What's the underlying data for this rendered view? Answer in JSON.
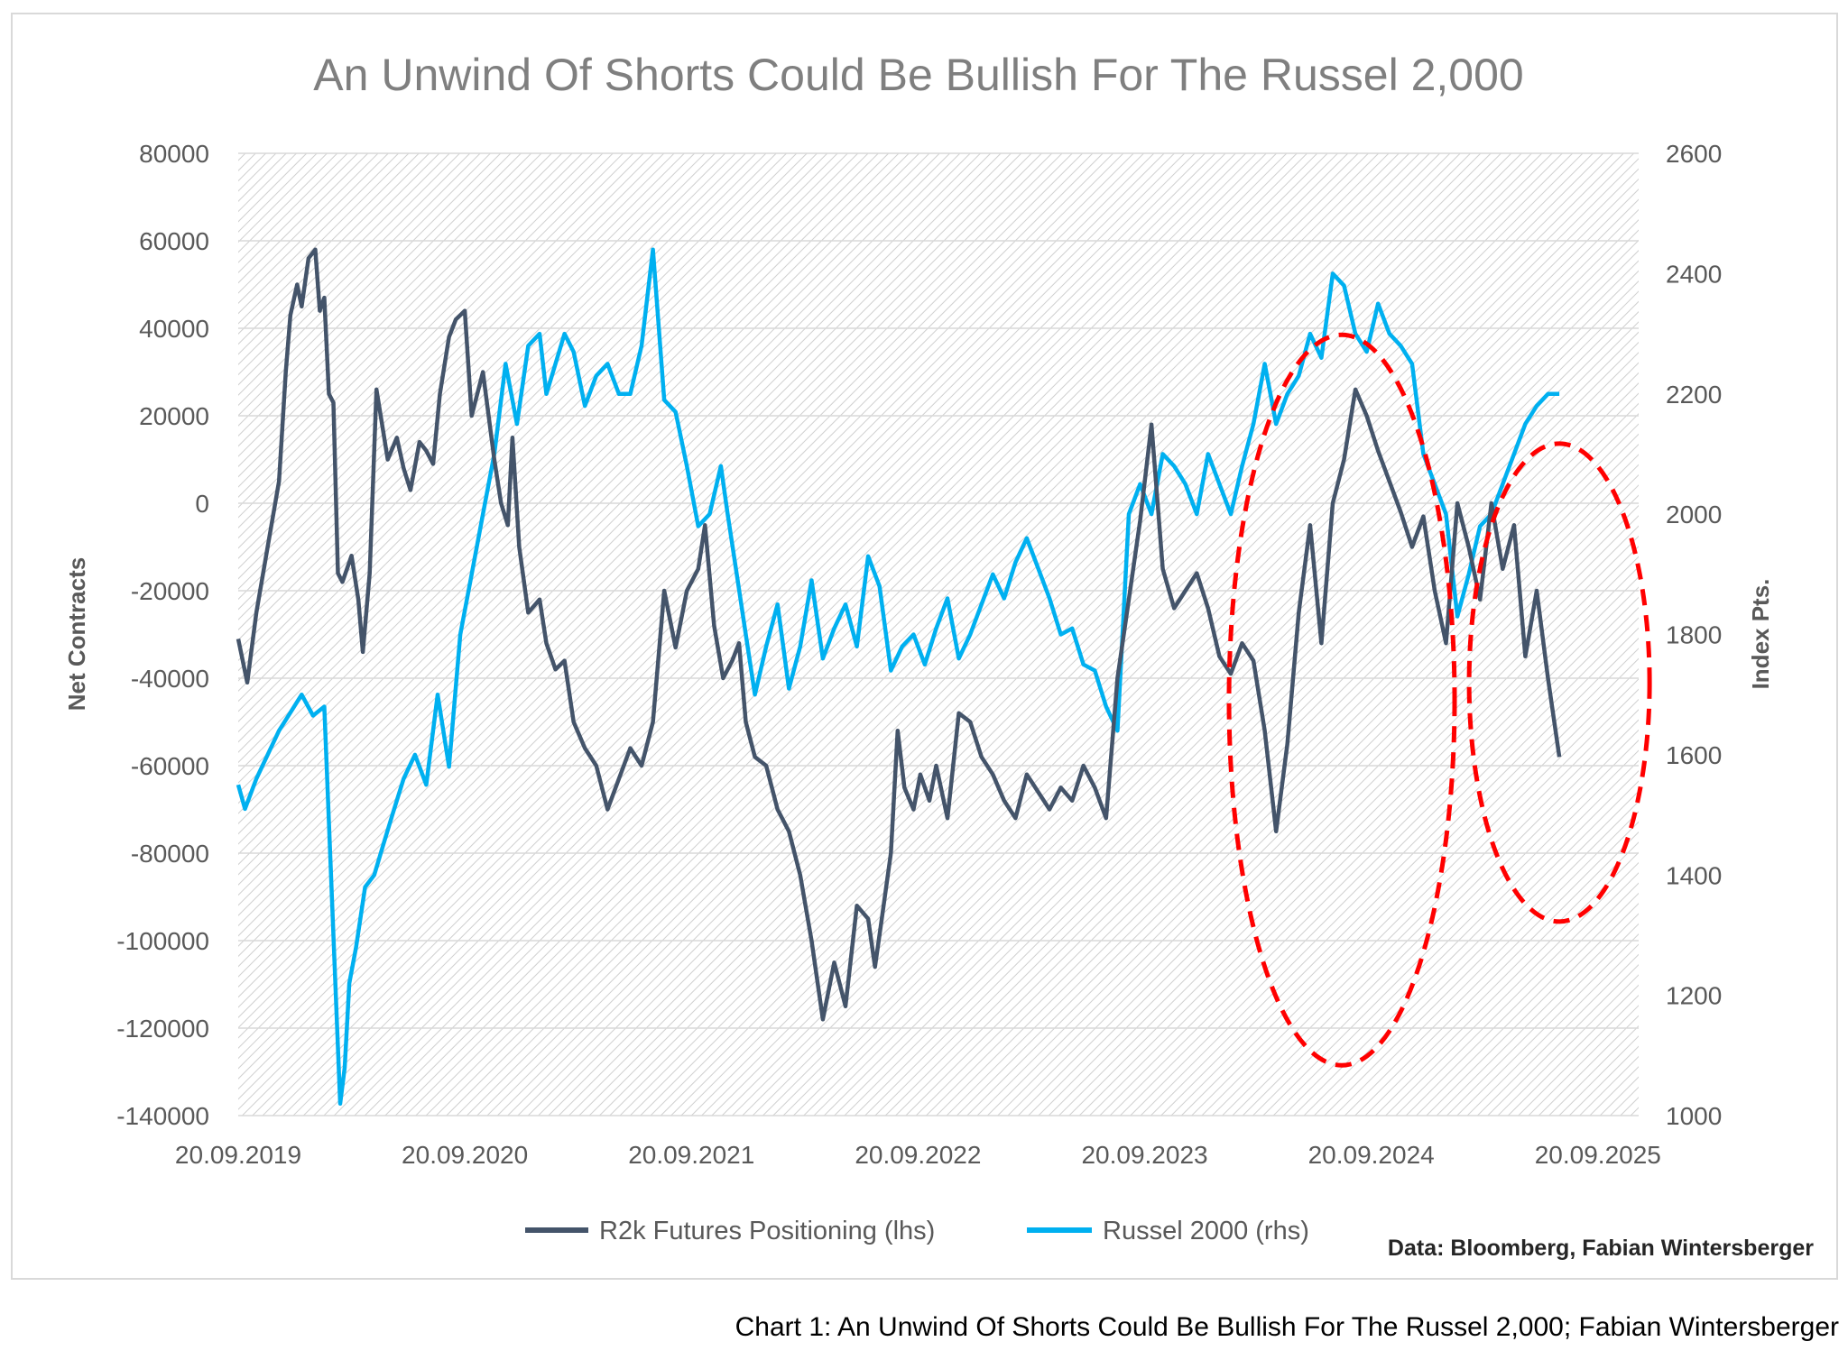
{
  "chart_data": {
    "type": "line",
    "title": "An Unwind Of Shorts Could Be Bullish For The Russel 2,000",
    "ylabel_left": "Net Contracts",
    "ylabel_right": "Index Pts.",
    "xlabel": "",
    "left_axis": {
      "ylim": [
        -140000,
        80000
      ],
      "ticks": [
        "80000",
        "60000",
        "40000",
        "20000",
        "0",
        "-20000",
        "-40000",
        "-60000",
        "-80000",
        "-100000",
        "-120000",
        "-140000"
      ]
    },
    "right_axis": {
      "ylim": [
        1000,
        2600
      ],
      "ticks": [
        "2600",
        "2400",
        "2200",
        "2000",
        "1800",
        "1600",
        "1400",
        "1200",
        "1000"
      ]
    },
    "x_range": [
      2019.72,
      2025.9
    ],
    "x_ticks": [
      "20.09.2019",
      "20.09.2020",
      "20.09.2021",
      "20.09.2022",
      "20.09.2023",
      "20.09.2024",
      "20.09.2025"
    ],
    "x_tick_positions": [
      2019.72,
      2020.72,
      2021.72,
      2022.72,
      2023.72,
      2024.72,
      2025.72
    ],
    "legend": {
      "placement": "bottom",
      "entries": [
        "R2k Futures Positioning (lhs)",
        "Russel 2000 (rhs)"
      ]
    },
    "source_note": "Data: Bloomberg, Fabian Wintersberger",
    "series": [
      {
        "name": "R2k Futures Positioning (lhs)",
        "axis": "left",
        "color": "#44546a",
        "x": [
          2019.72,
          2019.76,
          2019.8,
          2019.85,
          2019.9,
          2019.93,
          2019.95,
          2019.98,
          2020.0,
          2020.03,
          2020.06,
          2020.08,
          2020.1,
          2020.12,
          2020.14,
          2020.16,
          2020.18,
          2020.22,
          2020.25,
          2020.27,
          2020.3,
          2020.33,
          2020.38,
          2020.42,
          2020.45,
          2020.48,
          2020.52,
          2020.55,
          2020.58,
          2020.61,
          2020.65,
          2020.68,
          2020.72,
          2020.75,
          2020.8,
          2020.85,
          2020.88,
          2020.91,
          2020.93,
          2020.96,
          2021.0,
          2021.05,
          2021.08,
          2021.12,
          2021.16,
          2021.2,
          2021.25,
          2021.3,
          2021.35,
          2021.4,
          2021.45,
          2021.5,
          2021.55,
          2021.6,
          2021.65,
          2021.7,
          2021.75,
          2021.78,
          2021.82,
          2021.86,
          2021.9,
          2021.93,
          2021.96,
          2022.0,
          2022.05,
          2022.1,
          2022.15,
          2022.2,
          2022.25,
          2022.3,
          2022.35,
          2022.4,
          2022.45,
          2022.5,
          2022.53,
          2022.56,
          2022.6,
          2022.63,
          2022.66,
          2022.7,
          2022.73,
          2022.77,
          2022.8,
          2022.85,
          2022.9,
          2022.95,
          2023.0,
          2023.05,
          2023.1,
          2023.15,
          2023.2,
          2023.25,
          2023.3,
          2023.35,
          2023.4,
          2023.45,
          2023.5,
          2023.55,
          2023.6,
          2023.65,
          2023.7,
          2023.75,
          2023.8,
          2023.85,
          2023.9,
          2023.95,
          2024.0,
          2024.05,
          2024.1,
          2024.15,
          2024.2,
          2024.25,
          2024.3,
          2024.35,
          2024.4,
          2024.45,
          2024.5,
          2024.55,
          2024.6,
          2024.65,
          2024.7,
          2024.75,
          2024.8,
          2024.85,
          2024.9,
          2024.95,
          2025.0,
          2025.05,
          2025.1,
          2025.15,
          2025.2,
          2025.25,
          2025.3,
          2025.35,
          2025.4,
          2025.45,
          2025.5,
          2025.55
        ],
        "values": [
          -31000,
          -41000,
          -25000,
          -10000,
          5000,
          30000,
          43000,
          50000,
          45000,
          56000,
          58000,
          44000,
          47000,
          25000,
          23000,
          -16000,
          -18000,
          -12000,
          -22000,
          -34000,
          -16000,
          26000,
          10000,
          15000,
          8000,
          3000,
          14000,
          12000,
          9000,
          25000,
          38000,
          42000,
          44000,
          20000,
          30000,
          10000,
          0,
          -5000,
          15000,
          -10000,
          -25000,
          -22000,
          -32000,
          -38000,
          -36000,
          -50000,
          -56000,
          -60000,
          -70000,
          -63000,
          -56000,
          -60000,
          -50000,
          -20000,
          -33000,
          -20000,
          -15000,
          -5000,
          -28000,
          -40000,
          -36000,
          -32000,
          -50000,
          -58000,
          -60000,
          -70000,
          -75000,
          -85000,
          -100000,
          -118000,
          -105000,
          -115000,
          -92000,
          -95000,
          -106000,
          -95000,
          -80000,
          -52000,
          -65000,
          -70000,
          -62000,
          -68000,
          -60000,
          -72000,
          -48000,
          -50000,
          -58000,
          -62000,
          -68000,
          -72000,
          -62000,
          -66000,
          -70000,
          -65000,
          -68000,
          -60000,
          -65000,
          -72000,
          -40000,
          -22000,
          -4000,
          18000,
          -15000,
          -24000,
          -20000,
          -16000,
          -24000,
          -35000,
          -39000,
          -32000,
          -36000,
          -52000,
          -75000,
          -55000,
          -25000,
          -5000,
          -32000,
          0,
          10000,
          26000,
          20000,
          12000,
          5000,
          -2000,
          -10000,
          -3000,
          -20000,
          -32000,
          0,
          -10000,
          -22000,
          0,
          -15000,
          -5000,
          -35000,
          -20000,
          -40000,
          -58000
        ]
      },
      {
        "name": "Russel 2000 (rhs)",
        "axis": "right",
        "color": "#00b0f0",
        "x": [
          2019.72,
          2019.75,
          2019.8,
          2019.85,
          2019.9,
          2019.95,
          2020.0,
          2020.05,
          2020.1,
          2020.14,
          2020.17,
          2020.19,
          2020.21,
          2020.24,
          2020.28,
          2020.32,
          2020.36,
          2020.4,
          2020.45,
          2020.5,
          2020.55,
          2020.6,
          2020.65,
          2020.7,
          2020.75,
          2020.8,
          2020.85,
          2020.9,
          2020.95,
          2021.0,
          2021.05,
          2021.08,
          2021.12,
          2021.16,
          2021.2,
          2021.25,
          2021.3,
          2021.35,
          2021.4,
          2021.45,
          2021.5,
          2021.55,
          2021.6,
          2021.65,
          2021.7,
          2021.75,
          2021.8,
          2021.85,
          2021.88,
          2021.92,
          2021.96,
          2022.0,
          2022.05,
          2022.1,
          2022.15,
          2022.2,
          2022.25,
          2022.3,
          2022.35,
          2022.4,
          2022.45,
          2022.5,
          2022.55,
          2022.6,
          2022.65,
          2022.7,
          2022.75,
          2022.8,
          2022.85,
          2022.9,
          2022.95,
          2023.0,
          2023.05,
          2023.1,
          2023.15,
          2023.2,
          2023.25,
          2023.3,
          2023.35,
          2023.4,
          2023.45,
          2023.5,
          2023.55,
          2023.6,
          2023.65,
          2023.7,
          2023.75,
          2023.8,
          2023.85,
          2023.9,
          2023.95,
          2024.0,
          2024.05,
          2024.1,
          2024.15,
          2024.2,
          2024.25,
          2024.3,
          2024.35,
          2024.4,
          2024.45,
          2024.5,
          2024.55,
          2024.6,
          2024.65,
          2024.7,
          2024.75,
          2024.8,
          2024.85,
          2024.9,
          2024.95,
          2025.0,
          2025.05,
          2025.1,
          2025.15,
          2025.2,
          2025.25,
          2025.3,
          2025.35,
          2025.4,
          2025.45,
          2025.5,
          2025.55
        ],
        "values": [
          1550,
          1510,
          1560,
          1600,
          1640,
          1670,
          1700,
          1665,
          1680,
          1300,
          1020,
          1080,
          1220,
          1280,
          1380,
          1400,
          1450,
          1500,
          1560,
          1600,
          1550,
          1700,
          1580,
          1800,
          1900,
          2000,
          2100,
          2250,
          2150,
          2280,
          2300,
          2200,
          2250,
          2300,
          2270,
          2180,
          2230,
          2250,
          2200,
          2200,
          2280,
          2440,
          2190,
          2170,
          2080,
          1980,
          2000,
          2080,
          2000,
          1900,
          1800,
          1700,
          1780,
          1850,
          1710,
          1780,
          1890,
          1760,
          1810,
          1850,
          1780,
          1930,
          1880,
          1740,
          1780,
          1800,
          1750,
          1810,
          1860,
          1760,
          1800,
          1850,
          1900,
          1860,
          1920,
          1960,
          1910,
          1860,
          1800,
          1810,
          1750,
          1740,
          1680,
          1640,
          2000,
          2050,
          2000,
          2100,
          2080,
          2050,
          2000,
          2100,
          2050,
          2000,
          2080,
          2150,
          2250,
          2150,
          2200,
          2230,
          2300,
          2260,
          2400,
          2380,
          2300,
          2270,
          2350,
          2300,
          2280,
          2250,
          2100,
          2050,
          2000,
          1830,
          1900,
          1980,
          2000,
          2050,
          2100,
          2150,
          2180,
          2200,
          2200
        ]
      }
    ]
  },
  "caption": "Chart 1: An Unwind Of Shorts Could Be Bullish For The Russel 2,000; Fabian Wintersberger",
  "highlights": [
    {
      "x_center": 2024.59,
      "y_center": -45000,
      "label": "highlight-2024-cluster"
    },
    {
      "x_center": 2025.55,
      "y_center": -41000,
      "label": "highlight-2025-cluster"
    }
  ]
}
